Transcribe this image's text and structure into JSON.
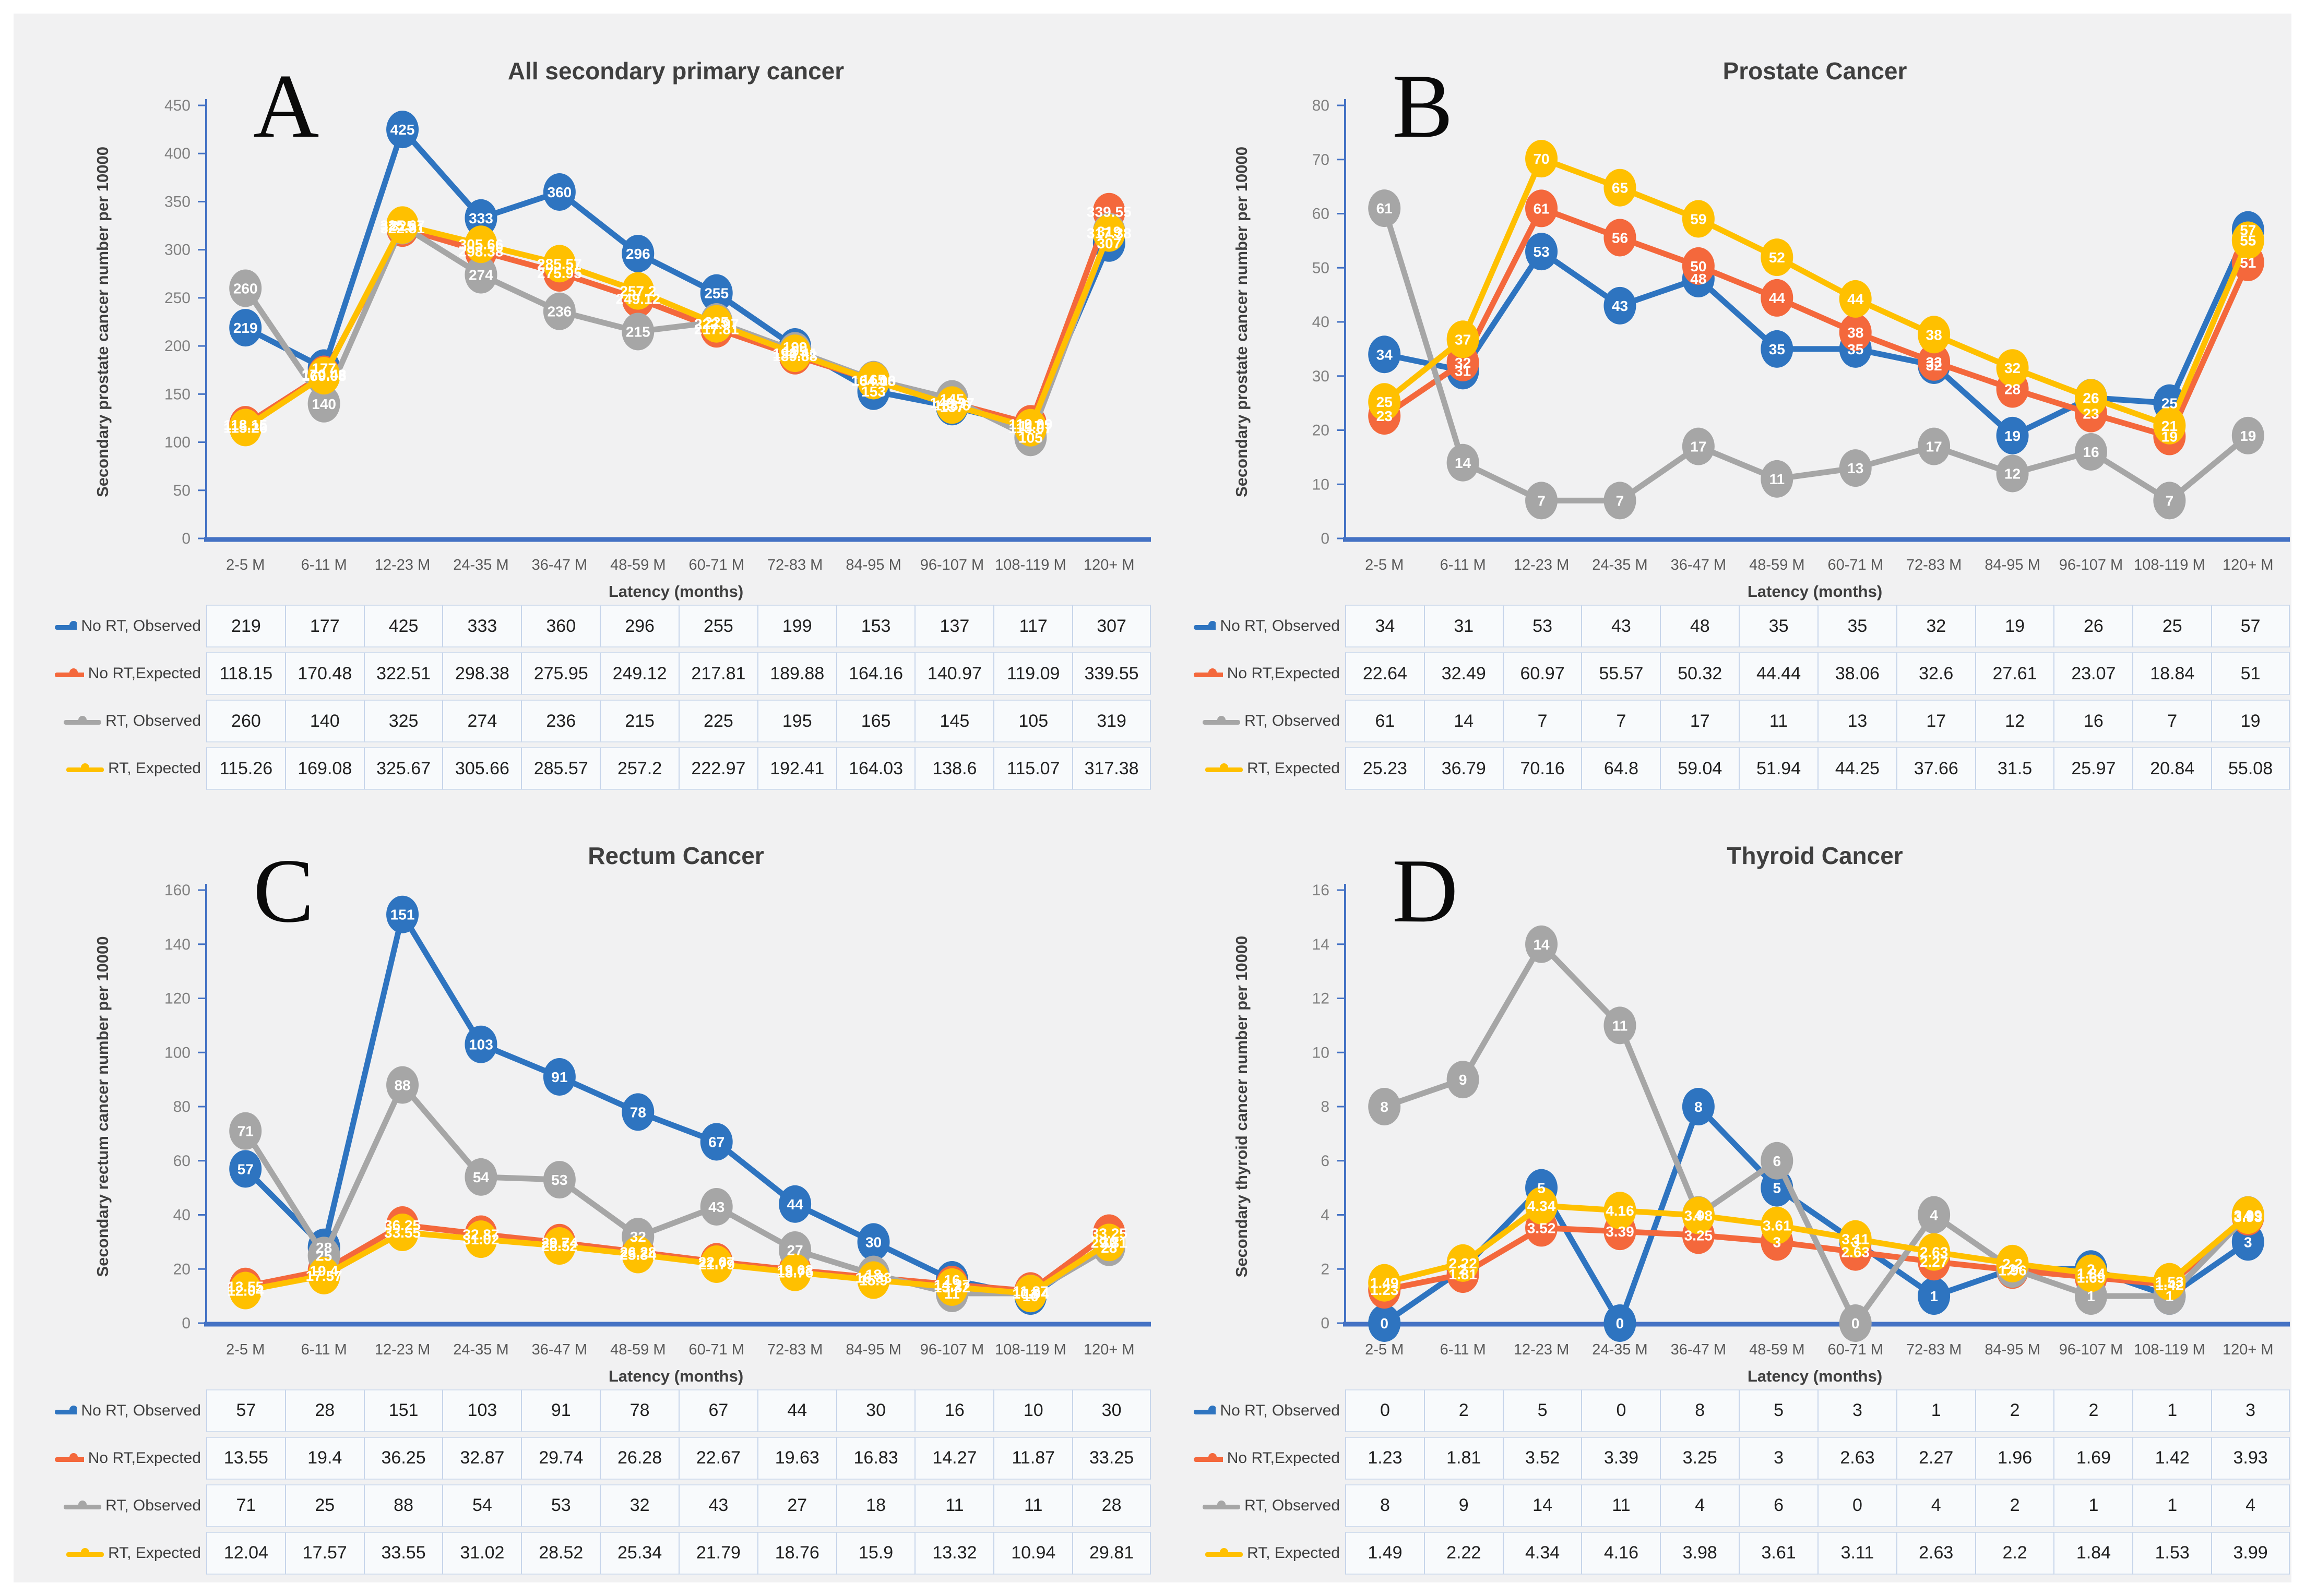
{
  "figure": {
    "x_axis_label": "Latency (months)",
    "categories": [
      "2-5 M",
      "6-11 M",
      "12-23 M",
      "24-35 M",
      "36-47 M",
      "48-59 M",
      "60-71 M",
      "72-83 M",
      "84-95 M",
      "96-107 M",
      "108-119 M",
      "120+ M"
    ],
    "colors": {
      "axis": "#4472c4",
      "tick_text": "#7f7f7f",
      "category_text": "#595959",
      "title_text": "#3f3f3f",
      "marker_label_text": "#ffffff",
      "card_background": "#f1f1f2"
    }
  },
  "chart_data": [
    {
      "type": "line",
      "letter": "A",
      "title": "All secondary primary cancer",
      "ylabel": "Secondary prostate cancer number per 10000",
      "xlabel": "Latency (months)",
      "ylim": [
        0,
        450
      ],
      "ystep": 50,
      "grid": false,
      "legend_position": "table-left",
      "round_labels": false,
      "categories": [
        "2-5 M",
        "6-11 M",
        "12-23 M",
        "24-35 M",
        "36-47 M",
        "48-59 M",
        "60-71 M",
        "72-83 M",
        "84-95 M",
        "96-107 M",
        "108-119 M",
        "120+ M"
      ],
      "series": [
        {
          "name": "No RT, Observed",
          "color": "#2e74c0",
          "values": [
            219,
            177,
            425,
            333,
            360,
            296,
            255,
            199,
            153,
            137,
            117,
            307
          ]
        },
        {
          "name": "No RT,Expected",
          "color": "#f4683c",
          "values": [
            118.15,
            170.48,
            322.51,
            298.38,
            275.95,
            249.12,
            217.81,
            189.88,
            164.16,
            140.97,
            119.09,
            339.55
          ]
        },
        {
          "name": "RT, Observed",
          "color": "#a6a6a6",
          "values": [
            260,
            140,
            325,
            274,
            236,
            215,
            225,
            195,
            165,
            145,
            105,
            319
          ]
        },
        {
          "name": "RT, Expected",
          "color": "#ffc000",
          "values": [
            115.26,
            169.08,
            325.67,
            305.66,
            285.57,
            257.2,
            222.97,
            192.41,
            164.03,
            138.6,
            115.07,
            317.38
          ]
        }
      ]
    },
    {
      "type": "line",
      "letter": "B",
      "title": "Prostate Cancer",
      "ylabel": "Secondary prostate cancer number per 10000",
      "xlabel": "Latency (months)",
      "ylim": [
        0,
        80
      ],
      "ystep": 10,
      "grid": false,
      "legend_position": "table-left",
      "round_labels": true,
      "categories": [
        "2-5 M",
        "6-11 M",
        "12-23 M",
        "24-35 M",
        "36-47 M",
        "48-59 M",
        "60-71 M",
        "72-83 M",
        "84-95 M",
        "96-107 M",
        "108-119 M",
        "120+ M"
      ],
      "series": [
        {
          "name": "No RT, Observed",
          "color": "#2e74c0",
          "values": [
            34,
            31,
            53,
            43,
            48,
            35,
            35,
            32,
            19,
            26,
            25,
            57
          ]
        },
        {
          "name": "No RT,Expected",
          "color": "#f4683c",
          "values": [
            22.64,
            32.49,
            60.97,
            55.57,
            50.32,
            44.44,
            38.06,
            32.6,
            27.61,
            23.07,
            18.84,
            51
          ]
        },
        {
          "name": "RT, Observed",
          "color": "#a6a6a6",
          "values": [
            61,
            14,
            7,
            7,
            17,
            11,
            13,
            17,
            12,
            16,
            7,
            19
          ]
        },
        {
          "name": "RT, Expected",
          "color": "#ffc000",
          "values": [
            25.23,
            36.79,
            70.16,
            64.8,
            59.04,
            51.94,
            44.25,
            37.66,
            31.5,
            25.97,
            20.84,
            55.08
          ]
        }
      ]
    },
    {
      "type": "line",
      "letter": "C",
      "title": "Rectum Cancer",
      "ylabel": "Secondary rectum cancer number per 10000",
      "xlabel": "Latency (months)",
      "ylim": [
        0,
        160
      ],
      "ystep": 20,
      "grid": false,
      "legend_position": "table-left",
      "round_labels": false,
      "categories": [
        "2-5 M",
        "6-11 M",
        "12-23 M",
        "24-35 M",
        "36-47 M",
        "48-59 M",
        "60-71 M",
        "72-83 M",
        "84-95 M",
        "96-107 M",
        "108-119 M",
        "120+ M"
      ],
      "series": [
        {
          "name": "No RT, Observed",
          "color": "#2e74c0",
          "values": [
            57,
            28,
            151,
            103,
            91,
            78,
            67,
            44,
            30,
            16,
            10,
            30
          ]
        },
        {
          "name": "No RT,Expected",
          "color": "#f4683c",
          "values": [
            13.55,
            19.4,
            36.25,
            32.87,
            29.74,
            26.28,
            22.67,
            19.63,
            16.83,
            14.27,
            11.87,
            33.25
          ]
        },
        {
          "name": "RT, Observed",
          "color": "#a6a6a6",
          "values": [
            71,
            25,
            88,
            54,
            53,
            32,
            43,
            27,
            18,
            11,
            11,
            28
          ]
        },
        {
          "name": "RT, Expected",
          "color": "#ffc000",
          "values": [
            12.04,
            17.57,
            33.55,
            31.02,
            28.52,
            25.34,
            21.79,
            18.76,
            15.9,
            13.32,
            10.94,
            29.81
          ]
        }
      ]
    },
    {
      "type": "line",
      "letter": "D",
      "title": "Thyroid Cancer",
      "ylabel": "Secondary thyroid cancer number per 10000",
      "xlabel": "Latency (months)",
      "ylim": [
        0,
        16
      ],
      "ystep": 2,
      "grid": false,
      "legend_position": "table-left",
      "round_labels": false,
      "categories": [
        "2-5 M",
        "6-11 M",
        "12-23 M",
        "24-35 M",
        "36-47 M",
        "48-59 M",
        "60-71 M",
        "72-83 M",
        "84-95 M",
        "96-107 M",
        "108-119 M",
        "120+ M"
      ],
      "series": [
        {
          "name": "No RT, Observed",
          "color": "#2e74c0",
          "values": [
            0,
            2,
            5,
            0,
            8,
            5,
            3,
            1,
            2,
            2,
            1,
            3
          ]
        },
        {
          "name": "No RT,Expected",
          "color": "#f4683c",
          "values": [
            1.23,
            1.81,
            3.52,
            3.39,
            3.25,
            3,
            2.63,
            2.27,
            1.96,
            1.69,
            1.42,
            3.93
          ]
        },
        {
          "name": "RT, Observed",
          "color": "#a6a6a6",
          "values": [
            8,
            9,
            14,
            11,
            4,
            6,
            0,
            4,
            2,
            1,
            1,
            4
          ]
        },
        {
          "name": "RT, Expected",
          "color": "#ffc000",
          "values": [
            1.49,
            2.22,
            4.34,
            4.16,
            3.98,
            3.61,
            3.11,
            2.63,
            2.2,
            1.84,
            1.53,
            3.99
          ]
        }
      ]
    }
  ]
}
